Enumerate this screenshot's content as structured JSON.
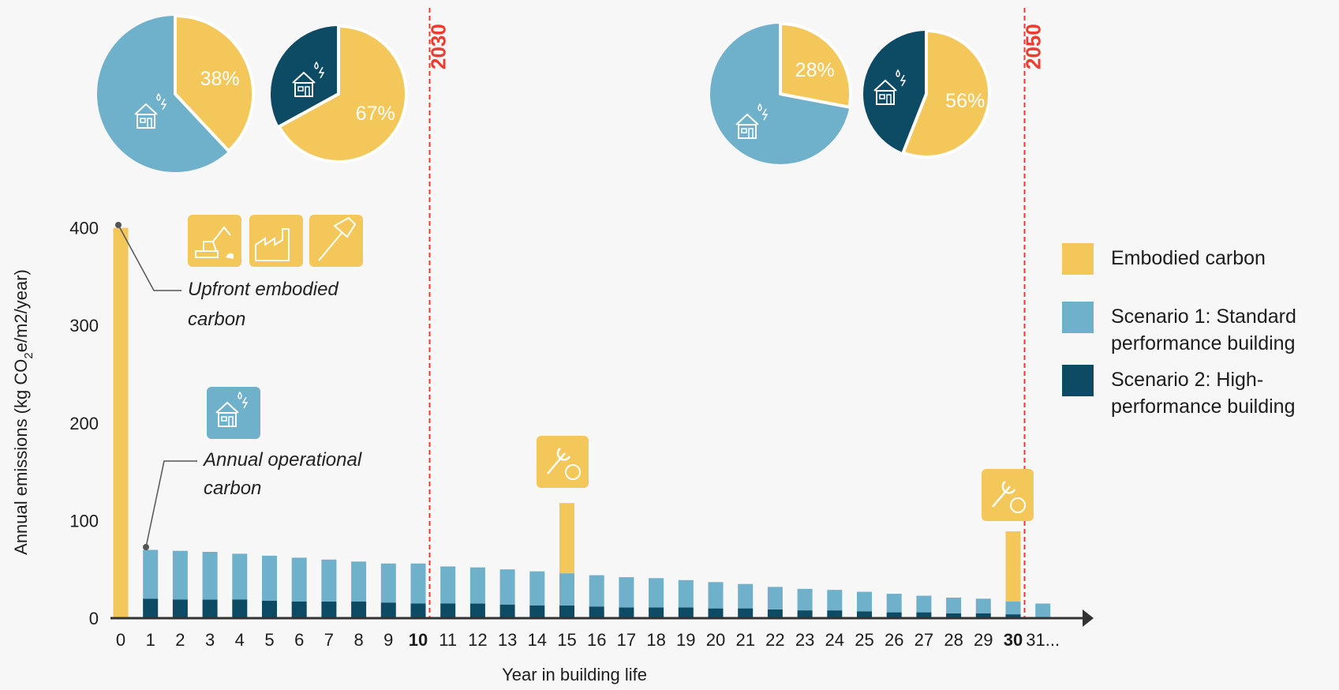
{
  "chart_data": {
    "type": "bar",
    "stacked": true,
    "xlabel": "Year in building life",
    "ylabel": "Annual emissions (kg CO2e/m2/year)",
    "ylabel_parts": [
      "Annual emissions (kg CO",
      "2",
      "e/m2/year)"
    ],
    "ylim": [
      0,
      400
    ],
    "yticks": [
      "0",
      "100",
      "200",
      "300",
      "400"
    ],
    "categories": [
      "0",
      "1",
      "2",
      "3",
      "4",
      "5",
      "6",
      "7",
      "8",
      "9",
      "10",
      "11",
      "12",
      "13",
      "14",
      "15",
      "16",
      "17",
      "18",
      "19",
      "20",
      "21",
      "22",
      "23",
      "24",
      "25",
      "26",
      "27",
      "28",
      "29",
      "30",
      "31..."
    ],
    "bold_ticks": [
      "10",
      "30"
    ],
    "series": [
      {
        "name": "Scenario 2: High-performance building",
        "color": "#0d4a63",
        "values": [
          0,
          20,
          19,
          19,
          19,
          18,
          17,
          17,
          17,
          16,
          15,
          15,
          15,
          14,
          13,
          13,
          12,
          11,
          11,
          11,
          10,
          10,
          9,
          8,
          8,
          7,
          6,
          6,
          5,
          5,
          4,
          0
        ]
      },
      {
        "name": "Scenario 1: Standard performance building",
        "color": "#6fb0ca",
        "values": [
          0,
          50,
          50,
          49,
          47,
          46,
          45,
          43,
          41,
          40,
          41,
          38,
          37,
          36,
          35,
          33,
          32,
          31,
          30,
          28,
          27,
          25,
          23,
          22,
          21,
          20,
          19,
          17,
          16,
          15,
          13,
          15
        ]
      },
      {
        "name": "Embodied carbon",
        "color": "#f3c75a",
        "values": [
          400,
          0,
          0,
          0,
          0,
          0,
          0,
          0,
          0,
          0,
          0,
          0,
          0,
          0,
          0,
          72,
          0,
          0,
          0,
          0,
          0,
          0,
          0,
          0,
          0,
          0,
          0,
          0,
          0,
          0,
          72,
          0
        ]
      }
    ],
    "milestones": [
      {
        "label": "2030",
        "year": "10"
      },
      {
        "label": "2050",
        "year": "30"
      }
    ],
    "annotations": {
      "upfront": [
        "Upfront embodied",
        "carbon"
      ],
      "operational": [
        "Annual operational",
        "carbon"
      ]
    },
    "legend": {
      "position": "right",
      "items": [
        {
          "color": "#f3c75a",
          "lines": [
            "Embodied carbon"
          ]
        },
        {
          "color": "#6fb0ca",
          "lines": [
            "Scenario 1: Standard",
            "performance building"
          ]
        },
        {
          "color": "#0d4a63",
          "lines": [
            "Scenario 2: High-",
            "performance building"
          ]
        }
      ]
    },
    "pies": [
      {
        "group": "2030",
        "scenario": "Scenario 1",
        "embodied_pct": 38,
        "label": "38%",
        "other_color": "#6fb0ca"
      },
      {
        "group": "2030",
        "scenario": "Scenario 2",
        "embodied_pct": 67,
        "label": "67%",
        "other_color": "#0d4a63"
      },
      {
        "group": "2050",
        "scenario": "Scenario 1",
        "embodied_pct": 28,
        "label": "28%",
        "other_color": "#6fb0ca"
      },
      {
        "group": "2050",
        "scenario": "Scenario 2",
        "embodied_pct": 56,
        "label": "56%",
        "other_color": "#0d4a63"
      }
    ],
    "icons": {
      "construction": [
        "excavator-icon",
        "factory-icon",
        "hammer-icon"
      ],
      "operational": "house-energy-icon",
      "maintenance": "wrench-icon"
    },
    "colors": {
      "embodied": "#f3c75a",
      "standard": "#6fb0ca",
      "high": "#0d4a63",
      "milestone": "#ee3b2f",
      "axis": "#333333"
    }
  }
}
